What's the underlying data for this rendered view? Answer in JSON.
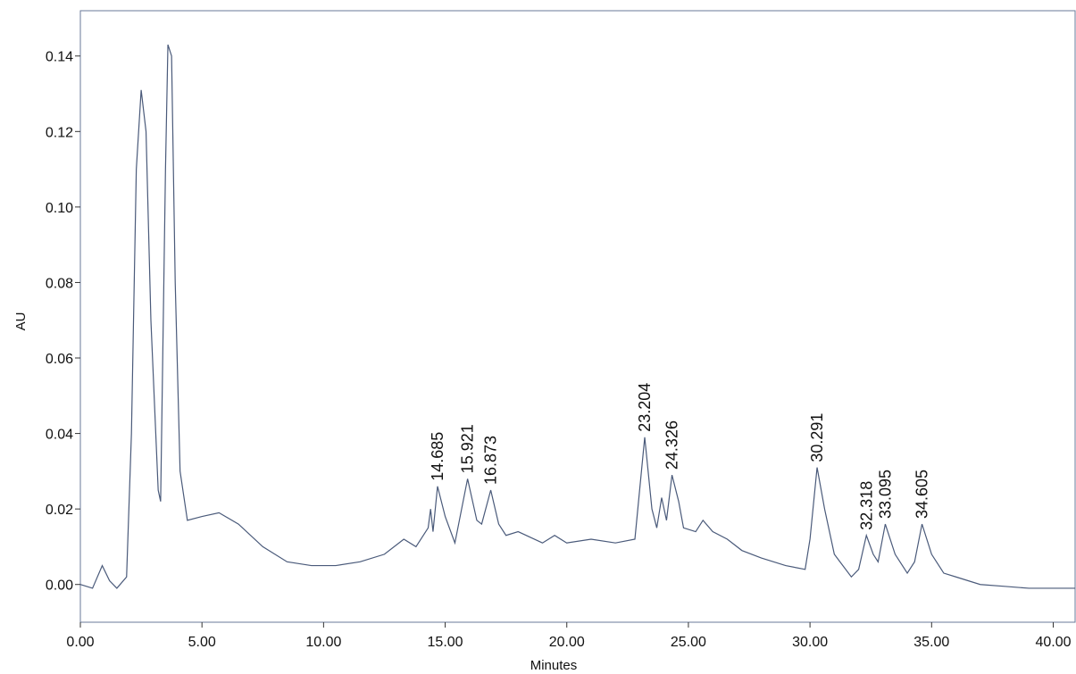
{
  "chart_data": {
    "type": "line",
    "x_label": "Minutes",
    "y_label": "AU",
    "series": [
      {
        "name": "AU",
        "color": "#4a5a7a",
        "x": [
          0,
          0.5,
          0.9,
          1.2,
          1.5,
          1.9,
          2.1,
          2.3,
          2.5,
          2.7,
          2.9,
          3.2,
          3.3,
          3.5,
          3.6,
          3.75,
          3.9,
          4.1,
          4.4,
          5.0,
          5.7,
          6.5,
          7.5,
          8.5,
          9.5,
          10.5,
          11.5,
          12.5,
          13.3,
          13.8,
          14.3,
          14.4,
          14.5,
          14.685,
          15.0,
          15.4,
          15.921,
          16.3,
          16.5,
          16.873,
          17.2,
          17.5,
          18,
          19,
          19.5,
          20,
          21,
          22,
          22.8,
          23.204,
          23.5,
          23.7,
          23.9,
          24.1,
          24.326,
          24.6,
          24.8,
          25.3,
          25.6,
          26,
          26.6,
          27.2,
          28,
          29,
          29.8,
          30.0,
          30.291,
          30.6,
          31.0,
          31.7,
          32.0,
          32.318,
          32.6,
          32.8,
          33.095,
          33.5,
          34.0,
          34.3,
          34.605,
          35,
          35.5,
          36,
          37,
          38,
          39,
          40,
          40.9
        ],
        "values": [
          0,
          -0.001,
          0.005,
          0.001,
          -0.001,
          0.002,
          0.04,
          0.11,
          0.131,
          0.12,
          0.07,
          0.025,
          0.022,
          0.11,
          0.143,
          0.14,
          0.08,
          0.03,
          0.017,
          0.018,
          0.019,
          0.016,
          0.01,
          0.006,
          0.005,
          0.005,
          0.006,
          0.008,
          0.012,
          0.01,
          0.015,
          0.02,
          0.014,
          0.026,
          0.018,
          0.011,
          0.028,
          0.017,
          0.016,
          0.025,
          0.016,
          0.013,
          0.014,
          0.011,
          0.013,
          0.011,
          0.012,
          0.011,
          0.012,
          0.039,
          0.02,
          0.015,
          0.023,
          0.017,
          0.029,
          0.022,
          0.015,
          0.014,
          0.017,
          0.014,
          0.012,
          0.009,
          0.007,
          0.005,
          0.004,
          0.012,
          0.031,
          0.02,
          0.008,
          0.002,
          0.004,
          0.013,
          0.008,
          0.006,
          0.016,
          0.008,
          0.003,
          0.006,
          0.016,
          0.008,
          0.003,
          0.002,
          0,
          -0.0005,
          -0.001,
          -0.001,
          -0.001
        ]
      }
    ],
    "peak_labels": [
      14.685,
      15.921,
      16.873,
      23.204,
      24.326,
      30.291,
      32.318,
      33.095,
      34.605
    ],
    "xlim": [
      0,
      40.9
    ],
    "ylim": [
      -0.01,
      0.152
    ],
    "xticks": [
      {
        "value": 0,
        "label": "0.00"
      },
      {
        "value": 5,
        "label": "5.00"
      },
      {
        "value": 10,
        "label": "10.00"
      },
      {
        "value": 15,
        "label": "15.00"
      },
      {
        "value": 20,
        "label": "20.00"
      },
      {
        "value": 25,
        "label": "25.00"
      },
      {
        "value": 30,
        "label": "30.00"
      },
      {
        "value": 35,
        "label": "35.00"
      },
      {
        "value": 40,
        "label": "40.00"
      }
    ],
    "yticks": [
      {
        "value": 0,
        "label": "0.00"
      },
      0.02,
      0.04,
      0.06,
      0.08,
      {
        "value": 0.1,
        "label": "0.10"
      },
      0.12,
      0.14
    ],
    "grid": false
  }
}
